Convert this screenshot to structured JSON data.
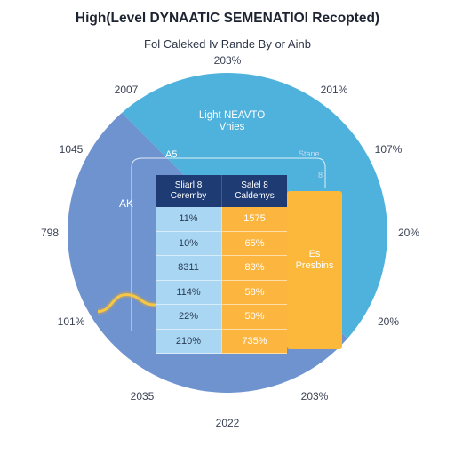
{
  "chart_data": {
    "type": "pie",
    "title": "High(Level DYNAATIC SEMENATIOI Recopted)",
    "subtitle": "Fol Caleked Iv Rande By or Ainb",
    "ring_labels": [
      "203%",
      "2007",
      "201%",
      "1045",
      "107%",
      "798",
      "20%",
      "101%",
      "20%",
      "2035",
      "203%",
      "2022"
    ],
    "slices": [
      {
        "value": 48,
        "color": "#4fb2dc"
      },
      {
        "value": 52,
        "color": "#6e93cf"
      }
    ],
    "inner_note": [
      "Light NEAVTO",
      "Vhies"
    ],
    "bracket_labels": [
      "A5",
      "AK"
    ],
    "faint_marks": [
      "Stane",
      "8"
    ],
    "table": {
      "headers": [
        [
          "Sliarl 8",
          "Ceremby"
        ],
        [
          "Salel 8",
          "Caldemys"
        ]
      ],
      "rows": [
        [
          "11%",
          "1575"
        ],
        [
          "10%",
          "65%"
        ],
        [
          "8311",
          "83%"
        ],
        [
          "114%",
          "58%"
        ],
        [
          "22%",
          "50%"
        ],
        [
          "210%",
          "735%"
        ]
      ]
    },
    "panel_label": [
      "Es",
      "Presbins"
    ],
    "curve": [
      {
        "x": 0,
        "y": 0.2
      },
      {
        "x": 1,
        "y": 0.45
      },
      {
        "x": 2,
        "y": 0.3
      },
      {
        "x": 3,
        "y": 0.05
      },
      {
        "x": 4,
        "y": 0.15
      },
      {
        "x": 5,
        "y": 1.0
      }
    ],
    "colors": {
      "header": "#1e3c73",
      "col1": "#a9d6f3",
      "col2": "#fcb640",
      "curve": "#f8c743"
    }
  }
}
